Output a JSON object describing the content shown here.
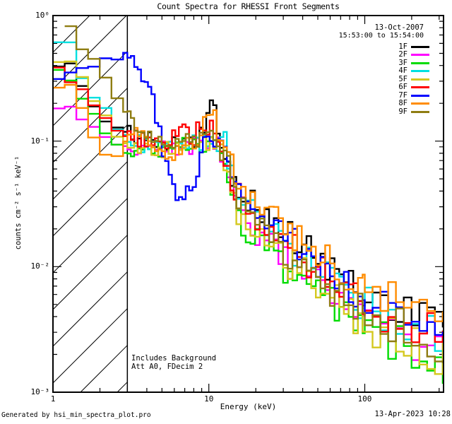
{
  "footer": {
    "left": "Generated by hsi_min_spectra_plot.pro",
    "right": "13-Apr-2023 10:28"
  },
  "chart_data": {
    "type": "line",
    "style": "stairstep-log-log-spectra",
    "title": "Count Spectra for RHESSI Front Segments",
    "date_label": "13-Oct-2007",
    "time_range": "15:53:00 to 15:54:00",
    "xlabel": "Energy (keV)",
    "ylabel": "counts cm⁻² s⁻¹ keV⁻¹",
    "x_log": true,
    "y_log": true,
    "xlim": [
      1,
      320
    ],
    "ylim": [
      0.001,
      1
    ],
    "x_ticks": [
      {
        "value": 1,
        "label": "1"
      },
      {
        "value": 10,
        "label": "10"
      },
      {
        "value": 100,
        "label": "100"
      }
    ],
    "y_ticks": [
      {
        "value": 1,
        "label": "10⁰"
      },
      {
        "value": 0.1,
        "label": "10⁻¹"
      },
      {
        "value": 0.01,
        "label": "10⁻²"
      },
      {
        "value": 0.001,
        "label": "10⁻³"
      }
    ],
    "annotations": [
      "Includes Background",
      "Att A0, FDecim 2"
    ],
    "hatch_region": {
      "from_kev": 1,
      "to_kev": 3,
      "style": "diagonal-hatch",
      "line_spacing_px": 52
    },
    "binning": [
      {
        "upto": 3,
        "dex": 0.075
      },
      {
        "upto": 15,
        "dex": 0.022
      },
      {
        "upto": 100,
        "dex": 0.03
      },
      {
        "upto": 320,
        "dex": 0.05
      }
    ],
    "noise_profile": [
      {
        "upto": 3,
        "amp": 0.03
      },
      {
        "upto": 7,
        "amp": 0.07
      },
      {
        "upto": 13,
        "amp": 0.08
      },
      {
        "upto": 30,
        "amp": 0.11
      },
      {
        "upto": 100,
        "amp": 0.14
      },
      {
        "upto": 1000,
        "amp": 0.16
      }
    ],
    "series": [
      {
        "name": "1F",
        "color": "#000000",
        "seed": 101,
        "emin": 1.0,
        "anchors": [
          [
            1,
            0.42
          ],
          [
            1.3,
            0.4
          ],
          [
            1.5,
            0.29
          ],
          [
            1.9,
            0.17
          ],
          [
            2.4,
            0.13
          ],
          [
            3,
            0.115
          ],
          [
            4,
            0.105
          ],
          [
            5,
            0.1
          ],
          [
            6.5,
            0.098
          ],
          [
            8,
            0.105
          ],
          [
            9.3,
            0.115
          ],
          [
            10.2,
            0.18
          ],
          [
            11,
            0.185
          ],
          [
            11.8,
            0.11
          ],
          [
            13,
            0.075
          ],
          [
            15,
            0.045
          ],
          [
            20,
            0.03
          ],
          [
            30,
            0.019
          ],
          [
            50,
            0.0115
          ],
          [
            100,
            0.006
          ],
          [
            180,
            0.0047
          ],
          [
            320,
            0.004
          ]
        ]
      },
      {
        "name": "2F",
        "color": "#ff00ff",
        "seed": 202,
        "emin": 1.0,
        "anchors": [
          [
            1,
            0.2
          ],
          [
            1.4,
            0.17
          ],
          [
            1.9,
            0.125
          ],
          [
            2.4,
            0.1
          ],
          [
            3,
            0.09
          ],
          [
            4.5,
            0.085
          ],
          [
            6,
            0.088
          ],
          [
            8,
            0.092
          ],
          [
            10,
            0.1
          ],
          [
            11.5,
            0.09
          ],
          [
            13,
            0.065
          ],
          [
            15,
            0.028
          ],
          [
            20,
            0.019
          ],
          [
            30,
            0.012
          ],
          [
            50,
            0.007
          ],
          [
            100,
            0.0037
          ],
          [
            180,
            0.0026
          ],
          [
            320,
            0.002
          ]
        ]
      },
      {
        "name": "3F",
        "color": "#00dc00",
        "seed": 303,
        "emin": 1.0,
        "anchors": [
          [
            1,
            0.38
          ],
          [
            1.3,
            0.29
          ],
          [
            1.7,
            0.19
          ],
          [
            2.2,
            0.115
          ],
          [
            2.8,
            0.082
          ],
          [
            3.5,
            0.085
          ],
          [
            5,
            0.088
          ],
          [
            7,
            0.092
          ],
          [
            9,
            0.096
          ],
          [
            10.5,
            0.1
          ],
          [
            11.5,
            0.085
          ],
          [
            13,
            0.065
          ],
          [
            15,
            0.024
          ],
          [
            20,
            0.017
          ],
          [
            30,
            0.01
          ],
          [
            50,
            0.006
          ],
          [
            100,
            0.0032
          ],
          [
            180,
            0.0023
          ],
          [
            320,
            0.0017
          ]
        ]
      },
      {
        "name": "4F",
        "color": "#00e0e0",
        "seed": 404,
        "emin": 1.0,
        "anchors": [
          [
            1,
            0.65
          ],
          [
            1.4,
            0.56
          ],
          [
            1.6,
            0.27
          ],
          [
            2.1,
            0.2
          ],
          [
            2.6,
            0.12
          ],
          [
            3.2,
            0.1
          ],
          [
            4.5,
            0.09
          ],
          [
            6,
            0.092
          ],
          [
            8,
            0.096
          ],
          [
            10,
            0.1
          ],
          [
            11.5,
            0.095
          ],
          [
            12.7,
            0.105
          ],
          [
            13.5,
            0.06
          ],
          [
            15,
            0.038
          ],
          [
            20,
            0.025
          ],
          [
            30,
            0.016
          ],
          [
            50,
            0.0095
          ],
          [
            100,
            0.005
          ],
          [
            180,
            0.0036
          ],
          [
            320,
            0.0028
          ]
        ]
      },
      {
        "name": "5F",
        "color": "#d4c81e",
        "seed": 505,
        "emin": 1.0,
        "anchors": [
          [
            1,
            0.47
          ],
          [
            1.25,
            0.43
          ],
          [
            1.55,
            0.32
          ],
          [
            2,
            0.18
          ],
          [
            2.5,
            0.115
          ],
          [
            3,
            0.092
          ],
          [
            4.5,
            0.085
          ],
          [
            6,
            0.088
          ],
          [
            8,
            0.094
          ],
          [
            10,
            0.1
          ],
          [
            11.5,
            0.09
          ],
          [
            13,
            0.065
          ],
          [
            15,
            0.028
          ],
          [
            20,
            0.019
          ],
          [
            30,
            0.012
          ],
          [
            50,
            0.007
          ],
          [
            100,
            0.0035
          ],
          [
            180,
            0.0025
          ],
          [
            320,
            0.0018
          ]
        ]
      },
      {
        "name": "6F",
        "color": "#ff0000",
        "seed": 606,
        "emin": 1.0,
        "anchors": [
          [
            1,
            0.4
          ],
          [
            1.3,
            0.29
          ],
          [
            1.8,
            0.21
          ],
          [
            2.3,
            0.14
          ],
          [
            3,
            0.11
          ],
          [
            4,
            0.1
          ],
          [
            5.5,
            0.098
          ],
          [
            6.8,
            0.13
          ],
          [
            7.6,
            0.1
          ],
          [
            8.6,
            0.125
          ],
          [
            9.6,
            0.11
          ],
          [
            10.5,
            0.125
          ],
          [
            11.5,
            0.09
          ],
          [
            13,
            0.07
          ],
          [
            15,
            0.038
          ],
          [
            20,
            0.025
          ],
          [
            30,
            0.016
          ],
          [
            50,
            0.0095
          ],
          [
            100,
            0.005
          ],
          [
            180,
            0.0038
          ],
          [
            320,
            0.003
          ]
        ]
      },
      {
        "name": "7F",
        "color": "#0000ff",
        "seed": 707,
        "emin": 1.0,
        "anchors": [
          [
            1,
            0.32
          ],
          [
            1.4,
            0.34
          ],
          [
            1.8,
            0.4
          ],
          [
            2.2,
            0.48
          ],
          [
            3.2,
            0.47
          ],
          [
            3.8,
            0.32
          ],
          [
            4.4,
            0.2
          ],
          [
            4.9,
            0.115
          ],
          [
            5.5,
            0.055
          ],
          [
            6.3,
            0.038
          ],
          [
            7.5,
            0.037
          ],
          [
            8.5,
            0.055
          ],
          [
            9.4,
            0.095
          ],
          [
            10.5,
            0.105
          ],
          [
            11.5,
            0.1
          ],
          [
            12.5,
            0.082
          ],
          [
            15,
            0.042
          ],
          [
            20,
            0.028
          ],
          [
            30,
            0.018
          ],
          [
            50,
            0.0105
          ],
          [
            100,
            0.0056
          ],
          [
            180,
            0.0042
          ],
          [
            320,
            0.0034
          ]
        ]
      },
      {
        "name": "8F",
        "color": "#ff8c00",
        "seed": 808,
        "emin": 1.0,
        "anchors": [
          [
            1,
            0.24
          ],
          [
            1.25,
            0.29
          ],
          [
            1.6,
            0.16
          ],
          [
            2,
            0.085
          ],
          [
            2.6,
            0.078
          ],
          [
            3.1,
            0.12
          ],
          [
            3.7,
            0.11
          ],
          [
            4.5,
            0.085
          ],
          [
            5.5,
            0.076
          ],
          [
            7,
            0.09
          ],
          [
            8.5,
            0.11
          ],
          [
            9.7,
            0.18
          ],
          [
            10.7,
            0.165
          ],
          [
            11.8,
            0.105
          ],
          [
            13,
            0.085
          ],
          [
            15,
            0.05
          ],
          [
            20,
            0.035
          ],
          [
            30,
            0.022
          ],
          [
            50,
            0.0125
          ],
          [
            100,
            0.0066
          ],
          [
            180,
            0.005
          ],
          [
            320,
            0.0042
          ]
        ]
      },
      {
        "name": "9F",
        "color": "#8f7d12",
        "seed": 909,
        "emin": 1.1,
        "anchors": [
          [
            1.1,
            0.75
          ],
          [
            1.4,
            0.78
          ],
          [
            1.55,
            0.56
          ],
          [
            1.95,
            0.38
          ],
          [
            2.4,
            0.25
          ],
          [
            3,
            0.165
          ],
          [
            3.6,
            0.125
          ],
          [
            4.5,
            0.11
          ],
          [
            6,
            0.1
          ],
          [
            8,
            0.1
          ],
          [
            9.5,
            0.1
          ],
          [
            11.3,
            0.105
          ],
          [
            12.2,
            0.08
          ],
          [
            13.5,
            0.062
          ],
          [
            15,
            0.032
          ],
          [
            20,
            0.021
          ],
          [
            30,
            0.014
          ],
          [
            50,
            0.008
          ],
          [
            100,
            0.0043
          ],
          [
            180,
            0.0031
          ],
          [
            320,
            0.0024
          ]
        ]
      }
    ]
  }
}
